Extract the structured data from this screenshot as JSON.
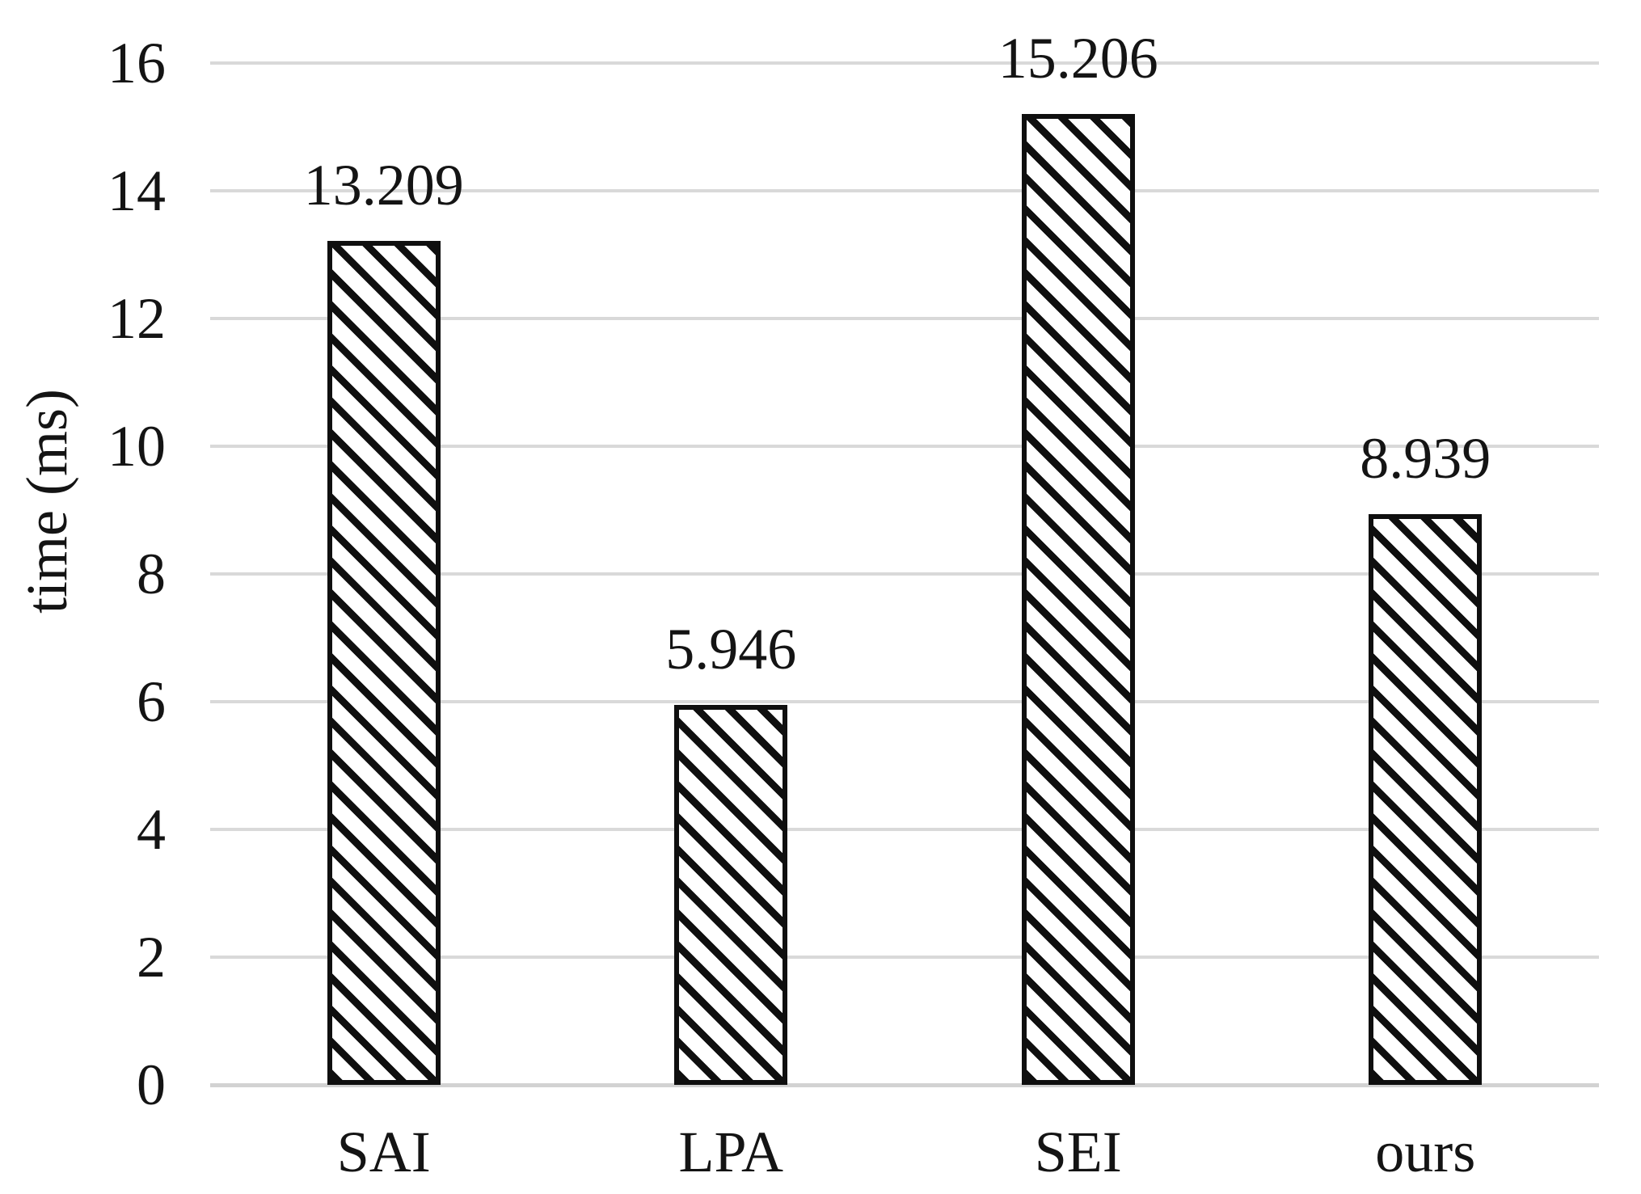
{
  "chart_data": {
    "type": "bar",
    "title": "",
    "ylabel": "time (ms)",
    "xlabel": "",
    "categories": [
      "SAI",
      "LPA",
      "SEI",
      "ours"
    ],
    "values": [
      13.209,
      5.946,
      15.206,
      8.939
    ],
    "data_labels": [
      "13.209",
      "5.946",
      "15.206",
      "8.939"
    ],
    "ylim": [
      0,
      16
    ],
    "ytick_step": 2,
    "yticks": [
      "0",
      "2",
      "4",
      "6",
      "8",
      "10",
      "12",
      "14",
      "16"
    ],
    "grid": true,
    "legend": "none",
    "bar_pattern": "downward-diagonal-hatch",
    "colors": {
      "background": "#ffffff",
      "bar_fill": "#ffffff",
      "bar_stripe": "#0f0f0f",
      "bar_border": "#0f0f0f",
      "gridline": "#d9d9d9",
      "text": "#141414"
    }
  }
}
